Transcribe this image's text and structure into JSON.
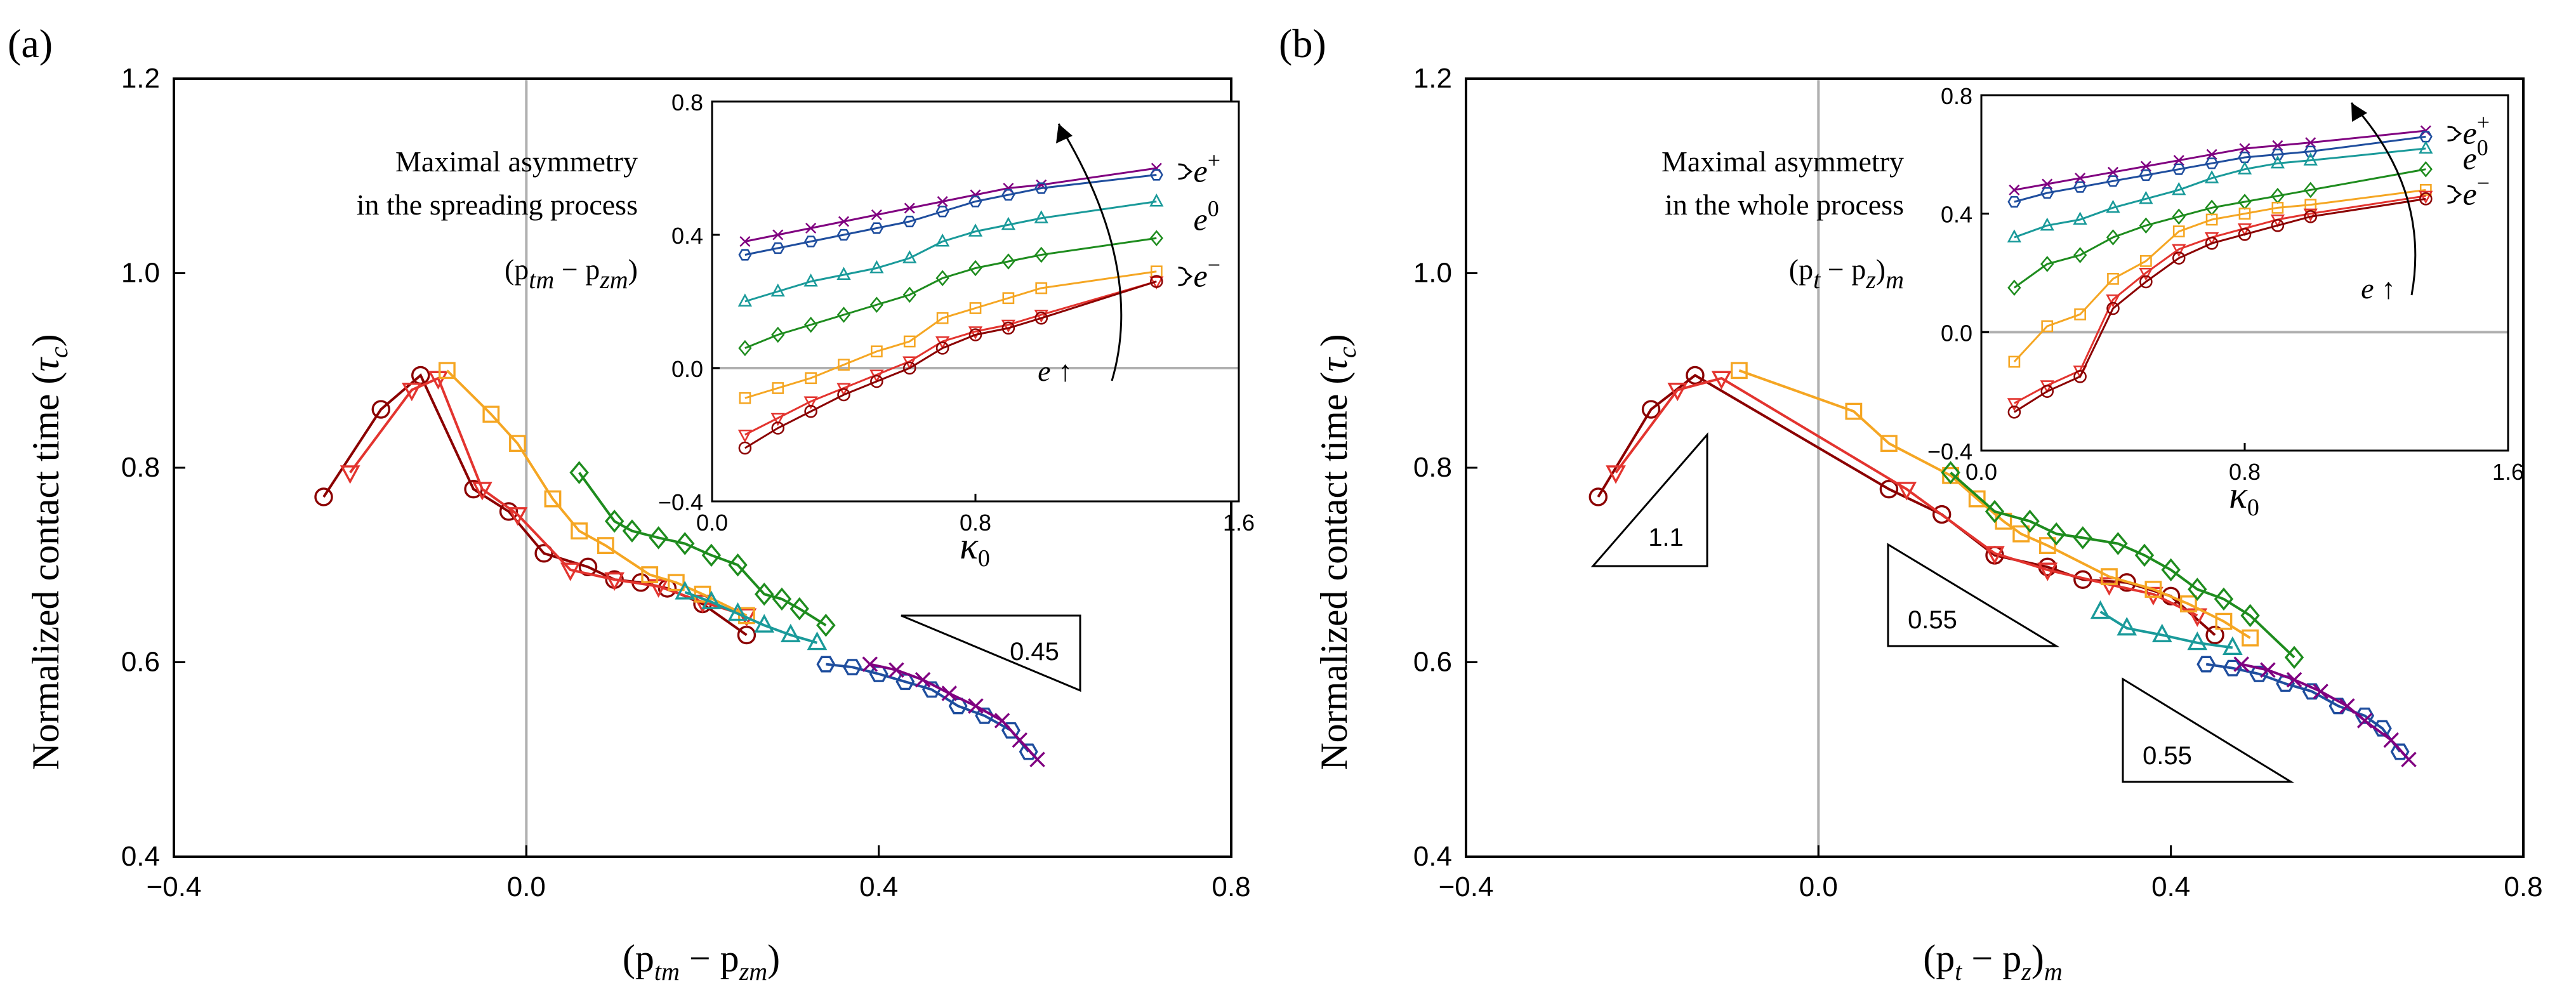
{
  "chart_data": [
    {
      "type": "line",
      "panel": "(a)",
      "xlabel": "(p_tm − p_zm)",
      "xlabel_parts": {
        "open": "(p",
        "sub1": "tm",
        "minus": " − p",
        "sub2": "zm",
        "close": ")"
      },
      "ylabel": "Normalized contact time (τc)",
      "ylabel_parts": {
        "prefix": "Normalized contact time (",
        "sym": "τ",
        "sub": "c",
        "suffix": ")"
      },
      "xlim": [
        -0.4,
        0.8
      ],
      "ylim": [
        0.4,
        1.2
      ],
      "xticks": [
        "−0.4",
        "0.0",
        "0.4",
        "0.8"
      ],
      "yticks": [
        "0.4",
        "0.6",
        "0.8",
        "1.0",
        "1.2"
      ],
      "annotation_lines": [
        "Maximal asymmetry",
        "in the spreading process"
      ],
      "annotation_math": {
        "open": "(p",
        "sub1": "tm",
        "minus": " − p",
        "sub2": "zm",
        "close": ")"
      },
      "slopes": [
        {
          "label": "0.45"
        }
      ],
      "series": [
        {
          "name": "dark red circles",
          "color": "#8B0000",
          "marker": "circle",
          "x": [
            -0.23,
            -0.165,
            -0.12,
            -0.06,
            -0.02,
            0.02,
            0.07,
            0.1,
            0.13,
            0.16,
            0.2,
            0.25
          ],
          "y": [
            0.77,
            0.86,
            0.895,
            0.778,
            0.755,
            0.712,
            0.698,
            0.685,
            0.682,
            0.676,
            0.66,
            0.628
          ]
        },
        {
          "name": "red triangles",
          "color": "#E3342F",
          "marker": "triangle-down",
          "x": [
            -0.2,
            -0.13,
            -0.1,
            -0.05,
            -0.01,
            0.05,
            0.1,
            0.15,
            0.2,
            0.25
          ],
          "y": [
            0.795,
            0.88,
            0.892,
            0.778,
            0.752,
            0.695,
            0.685,
            0.678,
            0.662,
            0.648
          ]
        },
        {
          "name": "orange squares",
          "color": "#F5A623",
          "marker": "square",
          "x": [
            -0.09,
            -0.04,
            -0.01,
            0.03,
            0.06,
            0.09,
            0.14,
            0.17,
            0.2,
            0.25
          ],
          "y": [
            0.9,
            0.855,
            0.825,
            0.768,
            0.735,
            0.72,
            0.69,
            0.682,
            0.67,
            0.648
          ]
        },
        {
          "name": "green diamonds",
          "color": "#1E8C1E",
          "marker": "diamond",
          "x": [
            0.06,
            0.1,
            0.12,
            0.15,
            0.18,
            0.21,
            0.24,
            0.27,
            0.29,
            0.31,
            0.34
          ],
          "y": [
            0.795,
            0.745,
            0.735,
            0.728,
            0.722,
            0.71,
            0.7,
            0.67,
            0.665,
            0.655,
            0.638
          ]
        },
        {
          "name": "teal triangles",
          "color": "#1A9A9A",
          "marker": "triangle-up",
          "x": [
            0.18,
            0.21,
            0.24,
            0.27,
            0.3,
            0.33
          ],
          "y": [
            0.672,
            0.662,
            0.65,
            0.638,
            0.628,
            0.62
          ]
        },
        {
          "name": "blue hexagons",
          "color": "#1F4E9E",
          "marker": "hexagon",
          "x": [
            0.34,
            0.37,
            0.4,
            0.43,
            0.46,
            0.49,
            0.52,
            0.55,
            0.57
          ],
          "y": [
            0.598,
            0.595,
            0.588,
            0.58,
            0.572,
            0.555,
            0.545,
            0.53,
            0.508
          ]
        },
        {
          "name": "purple crosses",
          "color": "#800080",
          "marker": "cross",
          "x": [
            0.39,
            0.42,
            0.45,
            0.48,
            0.51,
            0.54,
            0.56,
            0.58
          ],
          "y": [
            0.598,
            0.592,
            0.582,
            0.568,
            0.555,
            0.54,
            0.52,
            0.5
          ]
        }
      ],
      "inset": {
        "xlabel": "κ0",
        "xlabel_parts": {
          "sym": "κ",
          "sub": "0"
        },
        "xlim": [
          0.0,
          1.6
        ],
        "ylim": [
          -0.4,
          0.8
        ],
        "xticks": [
          "0.0",
          "0.8",
          "1.6"
        ],
        "yticks": [
          "−0.4",
          "0.0",
          "0.4",
          "0.8"
        ],
        "arrow_label": "e ↑",
        "arrow_label_parts": {
          "sym": "e",
          "arrow": " ↑"
        },
        "bracket_labels": [
          {
            "base": "e",
            "sup": "+",
            "color": "#555555"
          },
          {
            "base": "e",
            "sup": "0",
            "color": "#1E8C1E"
          },
          {
            "base": "e",
            "sup": "−",
            "color": "#555555"
          }
        ],
        "series": [
          {
            "color": "#800080",
            "marker": "cross",
            "x": [
              0.1,
              0.2,
              0.3,
              0.4,
              0.5,
              0.6,
              0.7,
              0.8,
              0.9,
              1.0,
              1.35
            ],
            "y": [
              0.38,
              0.4,
              0.42,
              0.44,
              0.46,
              0.48,
              0.5,
              0.52,
              0.54,
              0.55,
              0.6
            ]
          },
          {
            "color": "#1F4E9E",
            "marker": "hexagon",
            "x": [
              0.1,
              0.2,
              0.3,
              0.4,
              0.5,
              0.6,
              0.7,
              0.8,
              0.9,
              1.0,
              1.35
            ],
            "y": [
              0.34,
              0.36,
              0.38,
              0.4,
              0.42,
              0.44,
              0.47,
              0.5,
              0.52,
              0.54,
              0.58
            ]
          },
          {
            "color": "#1A9A9A",
            "marker": "triangle-up",
            "x": [
              0.1,
              0.2,
              0.3,
              0.4,
              0.5,
              0.6,
              0.7,
              0.8,
              0.9,
              1.0,
              1.35
            ],
            "y": [
              0.2,
              0.23,
              0.26,
              0.28,
              0.3,
              0.33,
              0.38,
              0.41,
              0.43,
              0.45,
              0.5
            ]
          },
          {
            "color": "#1E8C1E",
            "marker": "diamond",
            "x": [
              0.1,
              0.2,
              0.3,
              0.4,
              0.5,
              0.6,
              0.7,
              0.8,
              0.9,
              1.0,
              1.35
            ],
            "y": [
              0.06,
              0.1,
              0.13,
              0.16,
              0.19,
              0.22,
              0.27,
              0.3,
              0.32,
              0.34,
              0.39
            ]
          },
          {
            "color": "#F5A623",
            "marker": "square",
            "x": [
              0.1,
              0.2,
              0.3,
              0.4,
              0.5,
              0.6,
              0.7,
              0.8,
              0.9,
              1.0,
              1.35
            ],
            "y": [
              -0.09,
              -0.06,
              -0.03,
              0.01,
              0.05,
              0.08,
              0.15,
              0.18,
              0.21,
              0.24,
              0.29
            ]
          },
          {
            "color": "#E3342F",
            "marker": "triangle-down",
            "x": [
              0.1,
              0.2,
              0.3,
              0.4,
              0.5,
              0.6,
              0.7,
              0.8,
              0.9,
              1.0,
              1.35
            ],
            "y": [
              -0.2,
              -0.15,
              -0.1,
              -0.06,
              -0.02,
              0.02,
              0.08,
              0.11,
              0.13,
              0.16,
              0.26
            ]
          },
          {
            "color": "#8B0000",
            "marker": "circle",
            "x": [
              0.1,
              0.2,
              0.3,
              0.4,
              0.5,
              0.6,
              0.7,
              0.8,
              0.9,
              1.0,
              1.35
            ],
            "y": [
              -0.24,
              -0.18,
              -0.13,
              -0.08,
              -0.04,
              0.0,
              0.06,
              0.1,
              0.12,
              0.15,
              0.26
            ]
          }
        ]
      }
    },
    {
      "type": "line",
      "panel": "(b)",
      "xlabel": "(p_t − p_z)_m",
      "xlabel_parts": {
        "open": "(p",
        "sub1": "t",
        "minus": " − p",
        "sub2": "z",
        "close": ")",
        "sub3": "m"
      },
      "ylabel": "Normalized contact time (τc)",
      "ylabel_parts": {
        "prefix": "Normalized contact time (",
        "sym": "τ",
        "sub": "c",
        "suffix": ")"
      },
      "xlim": [
        -0.4,
        0.8
      ],
      "ylim": [
        0.4,
        1.2
      ],
      "xticks": [
        "−0.4",
        "0.0",
        "0.4",
        "0.8"
      ],
      "yticks": [
        "0.4",
        "0.6",
        "0.8",
        "1.0",
        "1.2"
      ],
      "annotation_lines": [
        "Maximal asymmetry",
        "in the whole process"
      ],
      "annotation_math": {
        "open": "(p",
        "sub1": "t",
        "minus": " − p",
        "sub2": "z",
        "close": ")",
        "sub3": "m"
      },
      "slopes": [
        {
          "label": "1.1"
        },
        {
          "label": "0.55"
        },
        {
          "label": "0.55"
        }
      ],
      "series": [
        {
          "name": "dark red circles",
          "color": "#8B0000",
          "marker": "circle",
          "x": [
            -0.25,
            -0.19,
            -0.14,
            0.08,
            0.14,
            0.2,
            0.26,
            0.3,
            0.35,
            0.4,
            0.45
          ],
          "y": [
            0.77,
            0.86,
            0.895,
            0.778,
            0.752,
            0.71,
            0.698,
            0.685,
            0.682,
            0.668,
            0.628
          ]
        },
        {
          "name": "red triangles",
          "color": "#E3342F",
          "marker": "triangle-down",
          "x": [
            -0.23,
            -0.16,
            -0.11,
            0.1,
            0.2,
            0.26,
            0.33,
            0.38,
            0.43
          ],
          "y": [
            0.795,
            0.88,
            0.892,
            0.778,
            0.712,
            0.695,
            0.68,
            0.67,
            0.648
          ]
        },
        {
          "name": "orange squares",
          "color": "#F5A623",
          "marker": "square",
          "x": [
            -0.09,
            0.04,
            0.08,
            0.15,
            0.18,
            0.21,
            0.23,
            0.26,
            0.33,
            0.38,
            0.42,
            0.46,
            0.49
          ],
          "y": [
            0.9,
            0.858,
            0.825,
            0.792,
            0.768,
            0.745,
            0.732,
            0.72,
            0.688,
            0.675,
            0.66,
            0.642,
            0.625
          ]
        },
        {
          "name": "green diamonds",
          "color": "#1E8C1E",
          "marker": "diamond",
          "x": [
            0.15,
            0.2,
            0.24,
            0.27,
            0.3,
            0.34,
            0.37,
            0.4,
            0.43,
            0.46,
            0.49,
            0.54
          ],
          "y": [
            0.795,
            0.755,
            0.745,
            0.732,
            0.728,
            0.722,
            0.71,
            0.695,
            0.675,
            0.665,
            0.648,
            0.605
          ]
        },
        {
          "name": "teal triangles",
          "color": "#1A9A9A",
          "marker": "triangle-up",
          "x": [
            0.32,
            0.35,
            0.39,
            0.43,
            0.47
          ],
          "y": [
            0.652,
            0.635,
            0.628,
            0.62,
            0.615
          ]
        },
        {
          "name": "blue hexagons",
          "color": "#1F4E9E",
          "marker": "hexagon",
          "x": [
            0.44,
            0.47,
            0.5,
            0.53,
            0.56,
            0.59,
            0.62,
            0.64,
            0.66
          ],
          "y": [
            0.598,
            0.594,
            0.588,
            0.578,
            0.57,
            0.555,
            0.545,
            0.532,
            0.508
          ]
        },
        {
          "name": "purple crosses",
          "color": "#800080",
          "marker": "cross",
          "x": [
            0.48,
            0.51,
            0.54,
            0.57,
            0.6,
            0.62,
            0.65,
            0.67
          ],
          "y": [
            0.598,
            0.592,
            0.582,
            0.57,
            0.555,
            0.54,
            0.52,
            0.5
          ]
        }
      ],
      "inset": {
        "xlabel": "κ0",
        "xlabel_parts": {
          "sym": "κ",
          "sub": "0"
        },
        "xlim": [
          0.0,
          1.6
        ],
        "ylim": [
          -0.4,
          0.8
        ],
        "xticks": [
          "0.0",
          "0.8",
          "1.6"
        ],
        "yticks": [
          "−0.4",
          "0.0",
          "0.4",
          "0.8"
        ],
        "arrow_label": "e ↑",
        "arrow_label_parts": {
          "sym": "e",
          "arrow": " ↑"
        },
        "bracket_labels": [
          {
            "base": "e",
            "sup": "+",
            "color": "#555555"
          },
          {
            "base": "e",
            "sup": "0",
            "color": "#1E8C1E"
          },
          {
            "base": "e",
            "sup": "−",
            "color": "#555555"
          }
        ],
        "series": [
          {
            "color": "#800080",
            "marker": "cross",
            "x": [
              0.1,
              0.2,
              0.3,
              0.4,
              0.5,
              0.6,
              0.7,
              0.8,
              0.9,
              1.0,
              1.35
            ],
            "y": [
              0.48,
              0.5,
              0.52,
              0.54,
              0.56,
              0.58,
              0.6,
              0.62,
              0.63,
              0.64,
              0.68
            ]
          },
          {
            "color": "#1F4E9E",
            "marker": "hexagon",
            "x": [
              0.1,
              0.2,
              0.3,
              0.4,
              0.5,
              0.6,
              0.7,
              0.8,
              0.9,
              1.0,
              1.35
            ],
            "y": [
              0.44,
              0.47,
              0.49,
              0.51,
              0.53,
              0.55,
              0.57,
              0.59,
              0.6,
              0.61,
              0.66
            ]
          },
          {
            "color": "#1A9A9A",
            "marker": "triangle-up",
            "x": [
              0.1,
              0.2,
              0.3,
              0.4,
              0.5,
              0.6,
              0.7,
              0.8,
              0.9,
              1.0,
              1.35
            ],
            "y": [
              0.32,
              0.36,
              0.38,
              0.42,
              0.45,
              0.48,
              0.52,
              0.55,
              0.57,
              0.58,
              0.62
            ]
          },
          {
            "color": "#1E8C1E",
            "marker": "diamond",
            "x": [
              0.1,
              0.2,
              0.3,
              0.4,
              0.5,
              0.6,
              0.7,
              0.8,
              0.9,
              1.0,
              1.35
            ],
            "y": [
              0.15,
              0.23,
              0.26,
              0.32,
              0.36,
              0.39,
              0.42,
              0.44,
              0.46,
              0.48,
              0.55
            ]
          },
          {
            "color": "#F5A623",
            "marker": "square",
            "x": [
              0.1,
              0.2,
              0.3,
              0.4,
              0.5,
              0.6,
              0.7,
              0.8,
              0.9,
              1.0,
              1.35
            ],
            "y": [
              -0.1,
              0.02,
              0.06,
              0.18,
              0.24,
              0.34,
              0.38,
              0.4,
              0.42,
              0.43,
              0.48
            ]
          },
          {
            "color": "#E3342F",
            "marker": "triangle-down",
            "x": [
              0.1,
              0.2,
              0.3,
              0.4,
              0.5,
              0.6,
              0.7,
              0.8,
              0.9,
              1.0,
              1.35
            ],
            "y": [
              -0.24,
              -0.18,
              -0.13,
              0.11,
              0.2,
              0.28,
              0.32,
              0.35,
              0.38,
              0.4,
              0.46
            ]
          },
          {
            "color": "#8B0000",
            "marker": "circle",
            "x": [
              0.1,
              0.2,
              0.3,
              0.4,
              0.5,
              0.6,
              0.7,
              0.8,
              0.9,
              1.0,
              1.35
            ],
            "y": [
              -0.27,
              -0.2,
              -0.15,
              0.08,
              0.17,
              0.25,
              0.3,
              0.33,
              0.36,
              0.39,
              0.45
            ]
          }
        ]
      }
    }
  ]
}
